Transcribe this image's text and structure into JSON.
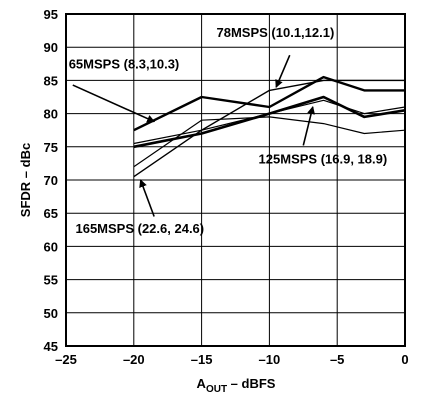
{
  "chart_data": {
    "type": "line",
    "xlabel_main": "A",
    "xlabel_sub": "OUT",
    "xlabel_rest": " – dBFS",
    "ylabel": "SFDR – dBc",
    "xlim": [
      -25,
      0
    ],
    "ylim": [
      45,
      95
    ],
    "xticks": [
      -25,
      -20,
      -15,
      -10,
      -5,
      0
    ],
    "xtick_labels": [
      "–25",
      "–20",
      "–15",
      "–10",
      "–5",
      "0"
    ],
    "yticks": [
      45,
      50,
      55,
      60,
      65,
      70,
      75,
      80,
      85,
      90,
      95
    ],
    "ytick_labels": [
      "45",
      "50",
      "55",
      "60",
      "65",
      "70",
      "75",
      "80",
      "85",
      "90",
      "95"
    ],
    "grid": true,
    "series": [
      {
        "points": [
          [
            -20,
            77.5
          ],
          [
            -15,
            82.5
          ],
          [
            -10,
            81.0
          ],
          [
            -6,
            85.5
          ],
          [
            -3,
            83.5
          ],
          [
            0,
            83.5
          ]
        ],
        "width": 2.4
      },
      {
        "points": [
          [
            -20,
            75.0
          ],
          [
            -15,
            77.0
          ],
          [
            -10,
            80.0
          ],
          [
            -6,
            82.5
          ],
          [
            -3,
            79.5
          ],
          [
            0,
            80.5
          ]
        ],
        "width": 2.6
      },
      {
        "points": [
          [
            -20,
            70.5
          ],
          [
            -15,
            77.5
          ],
          [
            -10,
            83.5
          ],
          [
            -6,
            85.0
          ],
          [
            -3,
            85.0
          ],
          [
            0,
            85.0
          ]
        ],
        "width": 1.4
      },
      {
        "points": [
          [
            -20,
            72.0
          ],
          [
            -15,
            79.0
          ],
          [
            -10,
            79.5
          ],
          [
            -6,
            78.5
          ],
          [
            -3,
            77.0
          ],
          [
            0,
            77.5
          ]
        ],
        "width": 1.2
      },
      {
        "points": [
          [
            -20,
            75.5
          ],
          [
            -15,
            77.5
          ],
          [
            -10,
            80.0
          ],
          [
            -6,
            82.0
          ],
          [
            -3,
            80.0
          ],
          [
            0,
            81.0
          ]
        ],
        "width": 1.2
      }
    ],
    "annotations": [
      {
        "text": "78MSPS (10.1,12.1)",
        "x": -13.9,
        "y": 91.5,
        "arrow_from": [
          -8.5,
          88.8
        ],
        "arrow_to": [
          -9.5,
          84.0
        ]
      },
      {
        "text": "65MSPS (8.3,10.3)",
        "x": -24.8,
        "y": 86.8,
        "arrow_from": [
          -24.5,
          84.3
        ],
        "arrow_to": [
          -18.5,
          78.8
        ]
      },
      {
        "text": "125MSPS (16.9, 18.9)",
        "x": -10.8,
        "y": 72.5,
        "arrow_from": [
          -7.5,
          75.2
        ],
        "arrow_to": [
          -6.8,
          81.0
        ]
      },
      {
        "text": "165MSPS (22.6, 24.6)",
        "x": -24.3,
        "y": 62.0,
        "arrow_from": [
          -18.5,
          64.5
        ],
        "arrow_to": [
          -19.5,
          70.0
        ]
      }
    ]
  }
}
